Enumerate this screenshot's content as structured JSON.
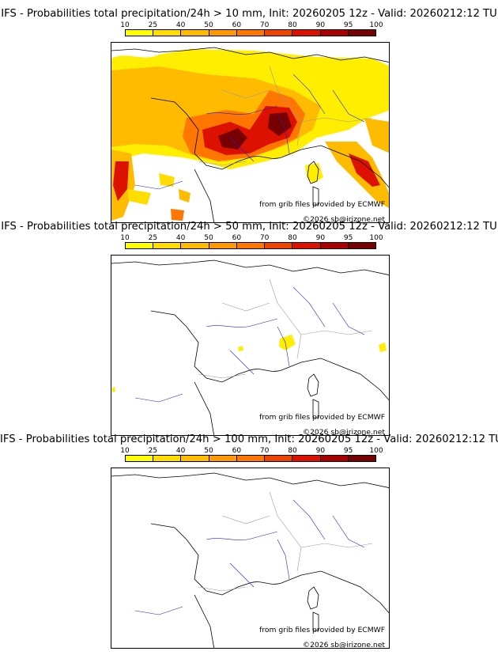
{
  "panels": [
    {
      "title": "IFS - Probabilities total precipitation/24h > 10 mm, Init: 20260205 12z - Valid: 20260212:12 TU"
    },
    {
      "title": "IFS - Probabilities total precipitation/24h > 50 mm, Init: 20260205 12z - Valid: 20260212:12 TU"
    },
    {
      "title": "IFS - Probabilities total precipitation/24h > 100 mm, Init: 20260205 12z - Valid: 20260212:12 TU"
    }
  ],
  "scale": {
    "labels": [
      "10",
      "25",
      "40",
      "50",
      "60",
      "70",
      "80",
      "90",
      "95",
      "100"
    ],
    "colors": [
      "#ffff00",
      "#ffdd00",
      "#ffbb00",
      "#ff9900",
      "#ff7700",
      "#ee4400",
      "#dd1100",
      "#aa0000",
      "#770000"
    ]
  },
  "credits": {
    "source": "from grib files provided by ECMWF",
    "copyright": "©2026 sb@irizone.net"
  },
  "colors": {
    "coast": "#000000",
    "rivers": "#2222cc",
    "borders": "#999999"
  }
}
